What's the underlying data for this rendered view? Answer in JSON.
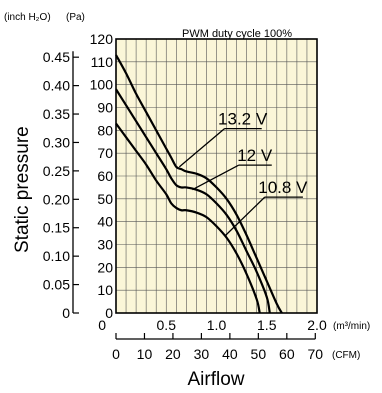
{
  "chart_data": {
    "type": "line",
    "title": "PWM duty cycle 100%",
    "ylabel": "Static pressure",
    "xlabel": "Airflow",
    "y_units": {
      "left": "(inch H₂O)",
      "right": "(Pa)"
    },
    "x_units": {
      "top": "(m³/min)",
      "bottom": "(CFM)"
    },
    "x_m3min": {
      "ticks": [
        "0",
        "0.5",
        "1.0",
        "1.5",
        "2.0"
      ],
      "range": [
        0,
        2.0
      ]
    },
    "x_cfm": {
      "ticks": [
        "0",
        "10",
        "20",
        "30",
        "40",
        "50",
        "60",
        "70"
      ],
      "range": [
        0,
        70.6
      ]
    },
    "y_pa": {
      "ticks": [
        "0",
        "10",
        "20",
        "30",
        "40",
        "50",
        "60",
        "70",
        "80",
        "90",
        "100",
        "110",
        "120"
      ],
      "range": [
        0,
        120
      ]
    },
    "y_inh2o": {
      "ticks": [
        "0",
        "0.05",
        "0.10",
        "0.15",
        "0.20",
        "0.25",
        "0.30",
        "0.35",
        "0.40",
        "0.45"
      ],
      "range": [
        0,
        0.482
      ]
    },
    "grid": true,
    "series": [
      {
        "name": "13.2 V",
        "x": [
          0,
          0.1,
          0.2,
          0.3,
          0.4,
          0.5,
          0.55,
          0.6,
          0.65,
          0.7,
          0.8,
          0.9,
          1.0,
          1.1,
          1.2,
          1.3,
          1.4,
          1.5,
          1.6,
          1.65
        ],
        "y": [
          113,
          105,
          96,
          88,
          80,
          72,
          68,
          64,
          63,
          62,
          61,
          59,
          55,
          50,
          43,
          34,
          24,
          14,
          4,
          0
        ]
      },
      {
        "name": "12 V",
        "x": [
          0,
          0.1,
          0.2,
          0.3,
          0.4,
          0.5,
          0.55,
          0.6,
          0.65,
          0.7,
          0.8,
          0.9,
          1.0,
          1.1,
          1.2,
          1.3,
          1.4,
          1.5,
          1.53
        ],
        "y": [
          98,
          91,
          84,
          77,
          70,
          63,
          59,
          56,
          55,
          55,
          54,
          52,
          48,
          43,
          36,
          27,
          18,
          7,
          0
        ]
      },
      {
        "name": "10.8 V",
        "x": [
          0,
          0.1,
          0.2,
          0.3,
          0.4,
          0.5,
          0.55,
          0.6,
          0.65,
          0.7,
          0.8,
          0.9,
          1.0,
          1.1,
          1.2,
          1.3,
          1.4,
          1.43
        ],
        "y": [
          83,
          77,
          71,
          65,
          58,
          52,
          48,
          46,
          45,
          45,
          44,
          42,
          38,
          33,
          26,
          17,
          6,
          0
        ]
      }
    ]
  }
}
